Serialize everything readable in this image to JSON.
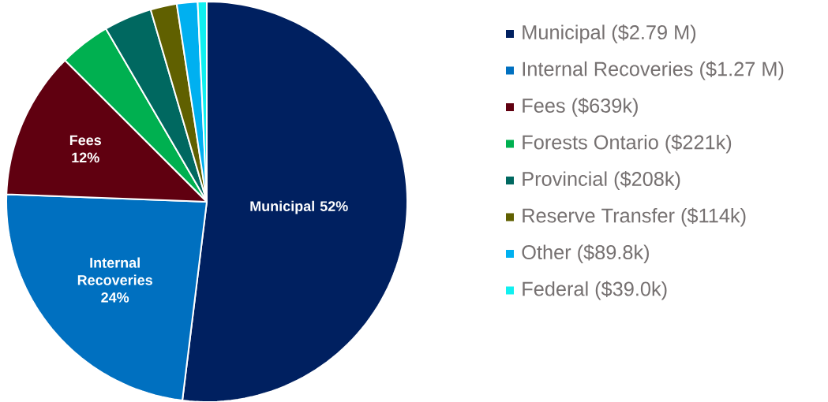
{
  "chart_data": {
    "type": "pie",
    "categories": [
      "Municipal ($2.79 M)",
      "Internal Recoveries ($1.27 M)",
      "Fees ($639k)",
      "Forests Ontario ($221k)",
      "Provincial ($208k)",
      "Reserve Transfer ($114k)",
      "Other ($89.8k)",
      "Federal ($39.0k)"
    ],
    "values": [
      2790,
      1270,
      639,
      221,
      208,
      114,
      89.8,
      39.0
    ],
    "colors": [
      "#002060",
      "#0070c0",
      "#600010",
      "#00b050",
      "#006860",
      "#606000",
      "#00b0f0",
      "#10f0f0"
    ],
    "value_labels": [
      "Municipal 52%",
      "Internal Recoveries 24%",
      "Fees 12%",
      null,
      null,
      null,
      null,
      null
    ],
    "legend": "right"
  }
}
